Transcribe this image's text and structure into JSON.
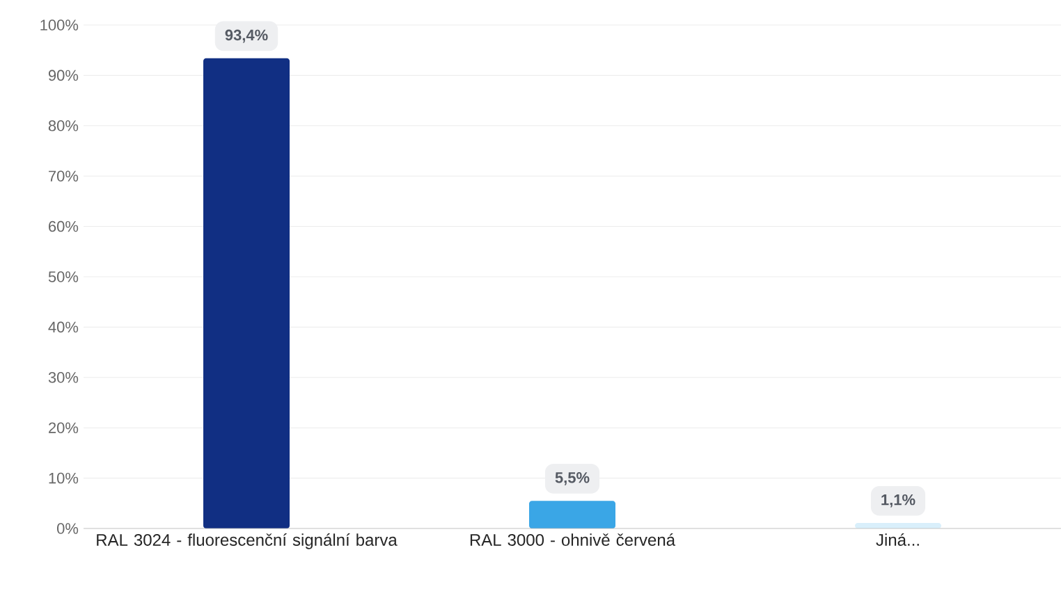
{
  "chart_data": {
    "type": "bar",
    "categories": [
      "RAL 3024 - fluorescenční signální barva",
      "RAL 3000 - ohnivě červená",
      "Jiná..."
    ],
    "values": [
      93.4,
      5.5,
      1.1
    ],
    "colors": [
      "#112f83",
      "#3aa6e6",
      "#d9effb"
    ],
    "value_labels": [
      "93,4%",
      "5,5%",
      "1,1%"
    ],
    "ylim": [
      0,
      100
    ],
    "yticks": [
      {
        "value": 0,
        "label": "0%"
      },
      {
        "value": 10,
        "label": "10%"
      },
      {
        "value": 20,
        "label": "20%"
      },
      {
        "value": 30,
        "label": "30%"
      },
      {
        "value": 40,
        "label": "40%"
      },
      {
        "value": 50,
        "label": "50%"
      },
      {
        "value": 60,
        "label": "60%"
      },
      {
        "value": 70,
        "label": "70%"
      },
      {
        "value": 80,
        "label": "80%"
      },
      {
        "value": 90,
        "label": "90%"
      },
      {
        "value": 100,
        "label": "100%"
      }
    ],
    "grid": "y"
  }
}
